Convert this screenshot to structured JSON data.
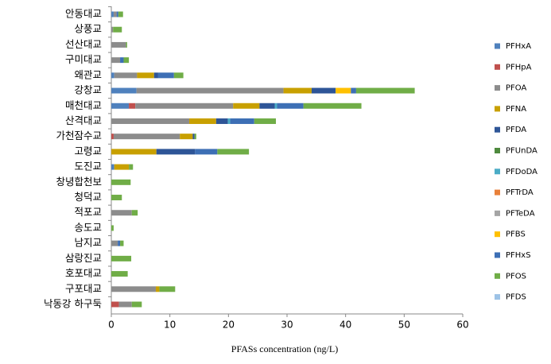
{
  "chart_data": {
    "type": "stacked_barh",
    "x_label": "PFASs concentration (ng/L)",
    "categories": [
      "안동대교",
      "상풍교",
      "선산대교",
      "구미대교",
      "왜관교",
      "강창교",
      "매천대교",
      "산격대교",
      "가천잠수교",
      "고령교",
      "도진교",
      "창녕합천보",
      "청덕교",
      "적포교",
      "송도교",
      "남지교",
      "삼랑진교",
      "호포대교",
      "구포대교",
      "낙동강 하구둑"
    ],
    "series": [
      {
        "name": "PFHxA",
        "color": "#4f81bd",
        "values": [
          0.4,
          0,
          0,
          0,
          0.5,
          4.3,
          3.0,
          0,
          0,
          0,
          0.5,
          0,
          0,
          0,
          0,
          0,
          0,
          0,
          0,
          0
        ]
      },
      {
        "name": "PFHpA",
        "color": "#c0504d",
        "values": [
          0,
          0,
          0,
          0,
          0,
          0,
          1.1,
          0,
          0.4,
          0,
          0,
          0,
          0,
          0,
          0,
          0,
          0,
          0,
          0,
          1.3
        ]
      },
      {
        "name": "PFOA",
        "color": "#8c8c8c",
        "values": [
          0.5,
          0.3,
          2.5,
          1.5,
          3.9,
          25.1,
          16.7,
          13.3,
          11.3,
          0,
          0,
          0,
          0,
          3.5,
          0,
          1.1,
          0,
          0,
          7.6,
          2.2
        ]
      },
      {
        "name": "PFNA",
        "color": "#c8a000",
        "values": [
          0,
          0,
          0,
          0,
          2.9,
          4.8,
          4.5,
          4.6,
          2.2,
          7.7,
          2.5,
          0,
          0,
          0,
          0,
          0,
          0,
          0,
          0.6,
          0
        ]
      },
      {
        "name": "PFDA",
        "color": "#2e5597",
        "values": [
          0,
          0,
          0,
          0,
          0.7,
          4.1,
          2.6,
          2.0,
          0.3,
          6.6,
          0,
          0,
          0,
          0,
          0,
          0,
          0,
          0,
          0,
          0
        ]
      },
      {
        "name": "PFUnDA",
        "color": "#4e8a3e",
        "values": [
          0,
          0,
          0,
          0,
          0,
          0,
          0,
          0,
          0,
          0,
          0,
          0,
          0,
          0,
          0,
          0,
          0,
          0,
          0,
          0
        ]
      },
      {
        "name": "PFDoDA",
        "color": "#4bacc6",
        "values": [
          0,
          0,
          0,
          0,
          0,
          0,
          0.4,
          0.4,
          0,
          0,
          0,
          0,
          0,
          0,
          0,
          0,
          0,
          0,
          0,
          0
        ]
      },
      {
        "name": "PFTrDA",
        "color": "#e8803a",
        "values": [
          0,
          0,
          0,
          0,
          0,
          0,
          0,
          0,
          0,
          0,
          0,
          0,
          0,
          0,
          0,
          0,
          0,
          0,
          0,
          0
        ]
      },
      {
        "name": "PFTeDA",
        "color": "#a5a5a5",
        "values": [
          0,
          0,
          0,
          0,
          0,
          0,
          0,
          0,
          0,
          0,
          0,
          0,
          0,
          0,
          0,
          0,
          0,
          0,
          0,
          0
        ]
      },
      {
        "name": "PFBS",
        "color": "#ffc000",
        "values": [
          0,
          0,
          0,
          0,
          0,
          2.6,
          0,
          0,
          0,
          0,
          0,
          0,
          0,
          0,
          0,
          0,
          0,
          0,
          0,
          0
        ]
      },
      {
        "name": "PFHxS",
        "color": "#3d6fb5",
        "values": [
          0.3,
          0,
          0,
          0.6,
          2.7,
          0.9,
          4.5,
          4.1,
          0,
          3.8,
          0,
          0,
          0,
          0,
          0,
          0.4,
          0,
          0,
          0,
          0
        ]
      },
      {
        "name": "PFOS",
        "color": "#70ad47",
        "values": [
          0.8,
          1.5,
          0.2,
          0.9,
          1.6,
          10.0,
          9.9,
          3.7,
          0.3,
          5.4,
          0.7,
          3.3,
          1.8,
          1.0,
          0.4,
          0.6,
          3.4,
          2.8,
          2.7,
          1.7
        ]
      },
      {
        "name": "PFDS",
        "color": "#9dc3e6",
        "values": [
          0,
          0,
          0,
          0,
          0,
          0,
          0,
          0,
          0,
          0,
          0,
          0,
          0,
          0,
          0,
          0,
          0,
          0,
          0,
          0
        ]
      }
    ],
    "xlim": [
      0,
      60
    ],
    "xticks": [
      0,
      10,
      20,
      30,
      40,
      50,
      60
    ]
  }
}
